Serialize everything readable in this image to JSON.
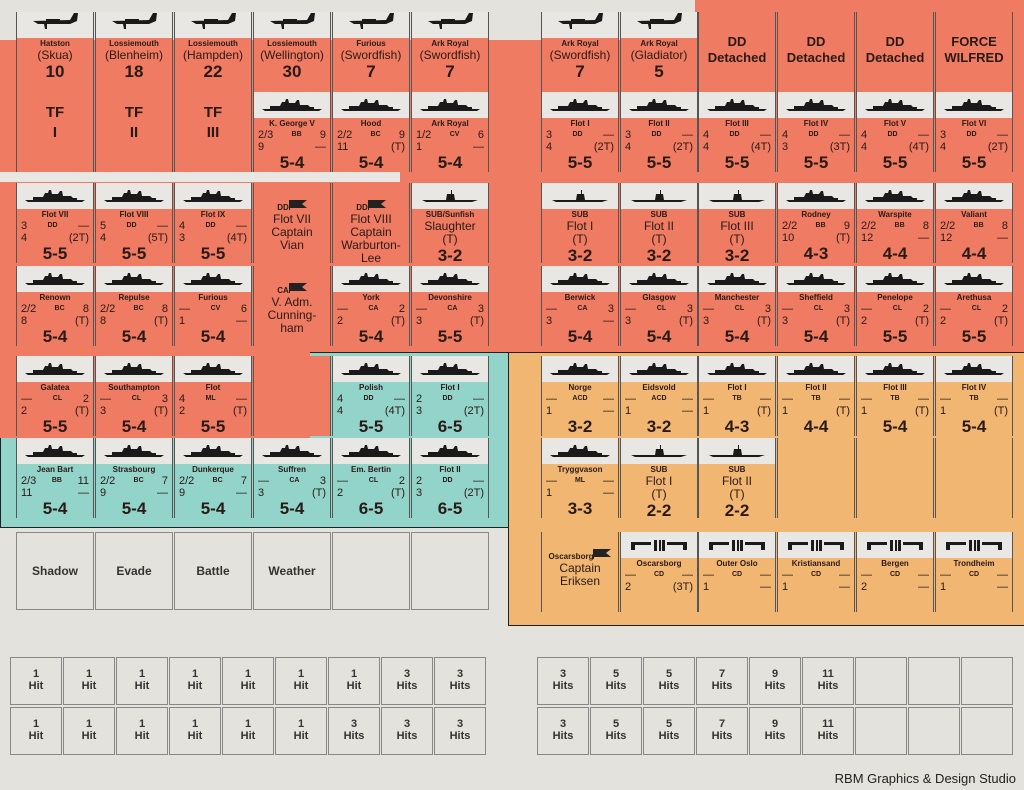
{
  "colors": {
    "british": "#ee7b62",
    "french": "#93d4ca",
    "norway": "#f1b672",
    "paper": "#e4e2dd"
  },
  "rows": [
    {
      "left": [
        {
          "t": "air",
          "base": "Hatston",
          "plane": "(Skua)",
          "str": "10"
        },
        {
          "t": "air",
          "base": "Lossiemouth",
          "plane": "(Blenheim)",
          "str": "18"
        },
        {
          "t": "air",
          "base": "Lossiemouth",
          "plane": "(Hampden)",
          "str": "22"
        },
        {
          "t": "air",
          "base": "Lossiemouth",
          "plane": "(Wellington)",
          "str": "30"
        },
        {
          "t": "air",
          "base": "Furious",
          "plane": "(Swordfish)",
          "str": "7"
        },
        {
          "t": "air",
          "base": "Ark Royal",
          "plane": "(Swordfish)",
          "str": "7"
        }
      ],
      "right": [
        {
          "t": "air",
          "base": "Ark Royal",
          "plane": "(Swordfish)",
          "str": "7"
        },
        {
          "t": "air",
          "base": "Ark Royal",
          "plane": "(Gladiator)",
          "str": "5"
        },
        {
          "t": "mk",
          "l1": "DD",
          "l2": "Detached"
        },
        {
          "t": "mk",
          "l1": "DD",
          "l2": "Detached"
        },
        {
          "t": "mk",
          "l1": "DD",
          "l2": "Detached"
        },
        {
          "t": "mk",
          "l1": "FORCE",
          "l2": "WILFRED"
        }
      ]
    },
    {
      "left": [
        {
          "t": "tf",
          "l1": "TF",
          "l2": "I"
        },
        {
          "t": "tf",
          "l1": "TF",
          "l2": "II"
        },
        {
          "t": "tf",
          "l1": "TF",
          "l2": "III"
        },
        {
          "t": "ship",
          "name": "K. George V",
          "tl": "2/3",
          "cls": "BB",
          "tr": "9",
          "bl": "9",
          "br": "—",
          "rt": "5-4"
        },
        {
          "t": "ship",
          "name": "Hood",
          "tl": "2/2",
          "cls": "BC",
          "tr": "9",
          "bl": "11",
          "br": "(T)",
          "rt": "5-4"
        },
        {
          "t": "ship",
          "name": "Ark Royal",
          "tl": "1/2",
          "cls": "CV",
          "tr": "6",
          "bl": "1",
          "br": "—",
          "rt": "5-4"
        }
      ],
      "right": [
        {
          "t": "ship",
          "name": "Flot I",
          "tl": "3",
          "cls": "DD",
          "tr": "—",
          "bl": "4",
          "br": "(2T)",
          "rt": "5-5"
        },
        {
          "t": "ship",
          "name": "Flot II",
          "tl": "3",
          "cls": "DD",
          "tr": "—",
          "bl": "4",
          "br": "(2T)",
          "rt": "5-5"
        },
        {
          "t": "ship",
          "name": "Flot III",
          "tl": "4",
          "cls": "DD",
          "tr": "—",
          "bl": "4",
          "br": "(4T)",
          "rt": "5-5"
        },
        {
          "t": "ship",
          "name": "Flot IV",
          "tl": "4",
          "cls": "DD",
          "tr": "—",
          "bl": "3",
          "br": "(3T)",
          "rt": "5-5"
        },
        {
          "t": "ship",
          "name": "Flot V",
          "tl": "4",
          "cls": "DD",
          "tr": "—",
          "bl": "4",
          "br": "(4T)",
          "rt": "5-5"
        },
        {
          "t": "ship",
          "name": "Flot VI",
          "tl": "3",
          "cls": "DD",
          "tr": "—",
          "bl": "4",
          "br": "(2T)",
          "rt": "5-5"
        }
      ]
    },
    {
      "left": [
        {
          "t": "ship",
          "name": "Flot VII",
          "tl": "3",
          "cls": "DD",
          "tr": "—",
          "bl": "4",
          "br": "(2T)",
          "rt": "5-5"
        },
        {
          "t": "ship",
          "name": "Flot VIII",
          "tl": "5",
          "cls": "DD",
          "tr": "—",
          "bl": "4",
          "br": "(5T)",
          "rt": "5-5"
        },
        {
          "t": "ship",
          "name": "Flot IX",
          "tl": "4",
          "cls": "DD",
          "tr": "—",
          "bl": "3",
          "br": "(4T)",
          "rt": "5-5"
        },
        {
          "t": "lead",
          "cls": "DD",
          "lines": [
            "Flot VII",
            "Captain",
            "Vian"
          ]
        },
        {
          "t": "lead",
          "cls": "DD",
          "lines": [
            "Flot VIII",
            "Captain",
            "Warburton-",
            "Lee"
          ]
        },
        {
          "t": "sub",
          "cls": "SUB/Sunfish",
          "name": "Slaughter",
          "tt": "(T)",
          "rt": "3-2"
        }
      ],
      "right": [
        {
          "t": "sub",
          "cls": "SUB",
          "name": "Flot I",
          "tt": "(T)",
          "rt": "3-2"
        },
        {
          "t": "sub",
          "cls": "SUB",
          "name": "Flot II",
          "tt": "(T)",
          "rt": "3-2"
        },
        {
          "t": "sub",
          "cls": "SUB",
          "name": "Flot III",
          "tt": "(T)",
          "rt": "3-2"
        },
        {
          "t": "ship",
          "name": "Rodney",
          "tl": "2/2",
          "cls": "BB",
          "tr": "9",
          "bl": "10",
          "br": "(T)",
          "rt": "4-3"
        },
        {
          "t": "ship",
          "name": "Warspite",
          "tl": "2/2",
          "cls": "BB",
          "tr": "8",
          "bl": "12",
          "br": "—",
          "rt": "4-4"
        },
        {
          "t": "ship",
          "name": "Valiant",
          "tl": "2/2",
          "cls": "BB",
          "tr": "8",
          "bl": "12",
          "br": "—",
          "rt": "4-4"
        }
      ]
    },
    {
      "left": [
        {
          "t": "ship",
          "name": "Renown",
          "tl": "2/2",
          "cls": "BC",
          "tr": "8",
          "bl": "8",
          "br": "(T)",
          "rt": "5-4"
        },
        {
          "t": "ship",
          "name": "Repulse",
          "tl": "2/2",
          "cls": "BC",
          "tr": "8",
          "bl": "8",
          "br": "(T)",
          "rt": "5-4"
        },
        {
          "t": "ship",
          "name": "Furious",
          "tl": "—",
          "cls": "CV",
          "tr": "6",
          "bl": "1",
          "br": "—",
          "rt": "5-4"
        },
        {
          "t": "lead",
          "cls": "CA",
          "lines": [
            "V. Adm.",
            "Cunning-",
            "ham"
          ]
        },
        {
          "t": "ship",
          "name": "York",
          "tl": "—",
          "cls": "CA",
          "tr": "2",
          "bl": "2",
          "br": "(T)",
          "rt": "5-4"
        },
        {
          "t": "ship",
          "name": "Devonshire",
          "tl": "—",
          "cls": "CA",
          "tr": "3",
          "bl": "3",
          "br": "(T)",
          "rt": "5-5"
        }
      ],
      "right": [
        {
          "t": "ship",
          "name": "Berwick",
          "tl": "—",
          "cls": "CA",
          "tr": "3",
          "bl": "3",
          "br": "—",
          "rt": "5-4"
        },
        {
          "t": "ship",
          "name": "Glasgow",
          "tl": "—",
          "cls": "CL",
          "tr": "3",
          "bl": "3",
          "br": "(T)",
          "rt": "5-4"
        },
        {
          "t": "ship",
          "name": "Manchester",
          "tl": "—",
          "cls": "CL",
          "tr": "3",
          "bl": "3",
          "br": "(T)",
          "rt": "5-4"
        },
        {
          "t": "ship",
          "name": "Sheffield",
          "tl": "—",
          "cls": "CL",
          "tr": "3",
          "bl": "3",
          "br": "(T)",
          "rt": "5-4"
        },
        {
          "t": "ship",
          "name": "Penelope",
          "tl": "—",
          "cls": "CL",
          "tr": "2",
          "bl": "2",
          "br": "(T)",
          "rt": "5-5"
        },
        {
          "t": "ship",
          "name": "Arethusa",
          "tl": "—",
          "cls": "CL",
          "tr": "2",
          "bl": "2",
          "br": "(T)",
          "rt": "5-5"
        }
      ]
    },
    {
      "left": [
        {
          "t": "ship",
          "name": "Galatea",
          "tl": "—",
          "cls": "CL",
          "tr": "2",
          "bl": "2",
          "br": "(T)",
          "rt": "5-5"
        },
        {
          "t": "ship",
          "name": "Southampton",
          "tl": "—",
          "cls": "CL",
          "tr": "3",
          "bl": "3",
          "br": "(T)",
          "rt": "5-4"
        },
        {
          "t": "ship",
          "name": "Flot",
          "tl": "4",
          "cls": "ML",
          "tr": "—",
          "bl": "2",
          "br": "(T)",
          "rt": "5-5"
        },
        {
          "t": "blank"
        },
        {
          "t": "none"
        },
        {
          "t": "ship",
          "f": "fr",
          "name": "Polish",
          "tl": "4",
          "cls": "DD",
          "tr": "—",
          "bl": "4",
          "br": "(4T)",
          "rt": "5-5"
        }
      ],
      "extra": {
        "t": "ship",
        "f": "fr",
        "name": "Flot I",
        "tl": "2",
        "cls": "DD",
        "tr": "—",
        "bl": "3",
        "br": "(2T)",
        "rt": "6-5"
      },
      "right": [
        {
          "t": "ship",
          "f": "no",
          "name": "Norge",
          "tl": "—",
          "cls": "ACD",
          "tr": "—",
          "bl": "1",
          "br": "—",
          "rt": "3-2"
        },
        {
          "t": "ship",
          "f": "no",
          "name": "Eidsvold",
          "tl": "—",
          "cls": "ACD",
          "tr": "—",
          "bl": "1",
          "br": "—",
          "rt": "3-2"
        },
        {
          "t": "ship",
          "f": "no",
          "name": "Flot I",
          "tl": "—",
          "cls": "TB",
          "tr": "—",
          "bl": "1",
          "br": "(T)",
          "rt": "4-3"
        },
        {
          "t": "ship",
          "f": "no",
          "name": "Flot II",
          "tl": "—",
          "cls": "TB",
          "tr": "—",
          "bl": "1",
          "br": "(T)",
          "rt": "4-4"
        },
        {
          "t": "ship",
          "f": "no",
          "name": "Flot III",
          "tl": "—",
          "cls": "TB",
          "tr": "—",
          "bl": "1",
          "br": "(T)",
          "rt": "5-4"
        },
        {
          "t": "ship",
          "f": "no",
          "name": "Flot IV",
          "tl": "—",
          "cls": "TB",
          "tr": "—",
          "bl": "1",
          "br": "(T)",
          "rt": "5-4"
        }
      ]
    },
    {
      "left": [
        {
          "t": "ship",
          "f": "fr",
          "name": "Jean Bart",
          "tl": "2/3",
          "cls": "BB",
          "tr": "11",
          "bl": "11",
          "br": "—",
          "rt": "5-4"
        },
        {
          "t": "ship",
          "f": "fr",
          "name": "Strasbourg",
          "tl": "2/2",
          "cls": "BC",
          "tr": "7",
          "bl": "9",
          "br": "—",
          "rt": "5-4"
        },
        {
          "t": "ship",
          "f": "fr",
          "name": "Dunkerque",
          "tl": "2/2",
          "cls": "BC",
          "tr": "7",
          "bl": "9",
          "br": "—",
          "rt": "5-4"
        },
        {
          "t": "ship",
          "f": "fr",
          "name": "Suffren",
          "tl": "—",
          "cls": "CA",
          "tr": "3",
          "bl": "3",
          "br": "(T)",
          "rt": "5-4"
        },
        {
          "t": "ship",
          "f": "fr",
          "name": "Em. Bertin",
          "tl": "—",
          "cls": "CL",
          "tr": "2",
          "bl": "2",
          "br": "(T)",
          "rt": "6-5"
        },
        {
          "t": "ship",
          "f": "fr",
          "name": "Flot II",
          "tl": "2",
          "cls": "DD",
          "tr": "—",
          "bl": "3",
          "br": "(2T)",
          "rt": "6-5"
        }
      ],
      "right": [
        {
          "t": "ship",
          "f": "no",
          "name": "Tryggvason",
          "tl": "—",
          "cls": "ML",
          "tr": "—",
          "bl": "1",
          "br": "—",
          "rt": "3-3"
        },
        {
          "t": "sub",
          "f": "no",
          "cls": "SUB",
          "name": "Flot I",
          "tt": "(T)",
          "rt": "2-2"
        },
        {
          "t": "sub",
          "f": "no",
          "cls": "SUB",
          "name": "Flot II",
          "tt": "(T)",
          "rt": "2-2"
        },
        {
          "t": "blank",
          "f": "no"
        },
        {
          "t": "blank",
          "f": "no"
        },
        {
          "t": "blank",
          "f": "no"
        }
      ]
    },
    {
      "left": [
        {
          "t": "gm",
          "text": "Shadow"
        },
        {
          "t": "gm",
          "text": "Evade"
        },
        {
          "t": "gm",
          "text": "Battle"
        },
        {
          "t": "gm",
          "text": "Weather"
        },
        {
          "t": "gm",
          "text": ""
        },
        {
          "t": "gm",
          "text": ""
        }
      ],
      "right": [
        {
          "t": "lead",
          "f": "no",
          "cls": "Oscarsborg",
          "lines": [
            "Captain",
            "Eriksen"
          ]
        },
        {
          "t": "fort",
          "f": "no",
          "name": "Oscarsborg",
          "cls": "CD",
          "bl": "2",
          "br": "(3T)"
        },
        {
          "t": "fort",
          "f": "no",
          "name": "Outer Oslo",
          "cls": "CD",
          "bl": "1",
          "br": "—"
        },
        {
          "t": "fort",
          "f": "no",
          "name": "Kristiansand",
          "cls": "CD",
          "bl": "1",
          "br": "—"
        },
        {
          "t": "fort",
          "f": "no",
          "name": "Bergen",
          "cls": "CD",
          "bl": "2",
          "br": "—"
        },
        {
          "t": "fort",
          "f": "no",
          "name": "Trondheim",
          "cls": "CD",
          "bl": "1",
          "br": "—"
        }
      ]
    }
  ],
  "hits": {
    "left": [
      [
        "1",
        "Hit"
      ],
      [
        "1",
        "Hit"
      ],
      [
        "1",
        "Hit"
      ],
      [
        "1",
        "Hit"
      ],
      [
        "1",
        "Hit"
      ],
      [
        "1",
        "Hit"
      ],
      [
        "1",
        "Hit"
      ],
      [
        "3",
        "Hits"
      ],
      [
        "3",
        "Hits"
      ],
      [
        "1",
        "Hit"
      ],
      [
        "1",
        "Hit"
      ],
      [
        "1",
        "Hit"
      ],
      [
        "1",
        "Hit"
      ],
      [
        "1",
        "Hit"
      ],
      [
        "1",
        "Hit"
      ],
      [
        "3",
        "Hits"
      ],
      [
        "3",
        "Hits"
      ],
      [
        "3",
        "Hits"
      ]
    ],
    "right": [
      [
        "3",
        "Hits"
      ],
      [
        "5",
        "Hits"
      ],
      [
        "5",
        "Hits"
      ],
      [
        "7",
        "Hits"
      ],
      [
        "9",
        "Hits"
      ],
      [
        "11",
        "Hits"
      ],
      [
        "",
        ""
      ],
      [
        "",
        ""
      ],
      [
        "",
        ""
      ],
      [
        "3",
        "Hits"
      ],
      [
        "5",
        "Hits"
      ],
      [
        "5",
        "Hits"
      ],
      [
        "7",
        "Hits"
      ],
      [
        "9",
        "Hits"
      ],
      [
        "11",
        "Hits"
      ],
      [
        "",
        ""
      ],
      [
        "",
        ""
      ],
      [
        "",
        ""
      ]
    ]
  },
  "credit": "RBM Graphics & Design Studio"
}
